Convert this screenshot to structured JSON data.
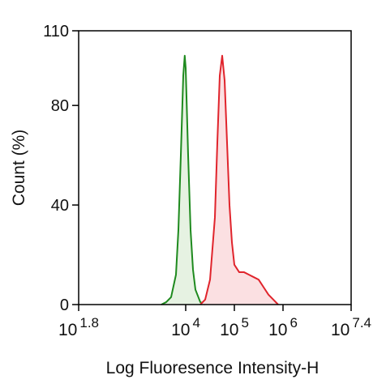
{
  "chart_data": {
    "type": "histogram-overlay",
    "xlabel": "Log Fluoresence Intensity-H",
    "ylabel": "Count  (%)",
    "xscale": "log",
    "xlim": [
      63.0957,
      25118864
    ],
    "xticks": [
      {
        "value": 63.0957,
        "label": "10",
        "exponent": "1.8"
      },
      {
        "value": 10000,
        "label": "10",
        "exponent": "4"
      },
      {
        "value": 100000,
        "label": "10",
        "exponent": "5"
      },
      {
        "value": 1000000,
        "label": "10",
        "exponent": "6"
      },
      {
        "value": 25118864,
        "label": "10",
        "exponent": "7.4"
      }
    ],
    "ylim": [
      0,
      110
    ],
    "yticks": [
      0,
      40,
      80,
      110
    ],
    "series": [
      {
        "color": "#1e8a1e",
        "fill": "#e6f2e2",
        "x": [
          3162,
          3981,
          5012,
          6310,
          7079,
          7943,
          8913,
          9550,
          10000,
          11220,
          12589,
          14125,
          15849,
          19953,
          25119
        ],
        "values": [
          0,
          1,
          3,
          12,
          30,
          60,
          92,
          100,
          95,
          60,
          30,
          14,
          6,
          1,
          0
        ]
      },
      {
        "color": "#e0242c",
        "fill": "#fbe0e2",
        "x": [
          19953,
          25119,
          31623,
          39811,
          44668,
          50119,
          56234,
          63096,
          70795,
          79433,
          89125,
          100000,
          125893,
          158489,
          199526,
          251189,
          316228,
          398107,
          501187,
          630957,
          794328
        ],
        "values": [
          0,
          2,
          10,
          35,
          65,
          92,
          100,
          90,
          65,
          40,
          25,
          16,
          13,
          13,
          12,
          11,
          10,
          7,
          4,
          2,
          0
        ]
      }
    ]
  }
}
